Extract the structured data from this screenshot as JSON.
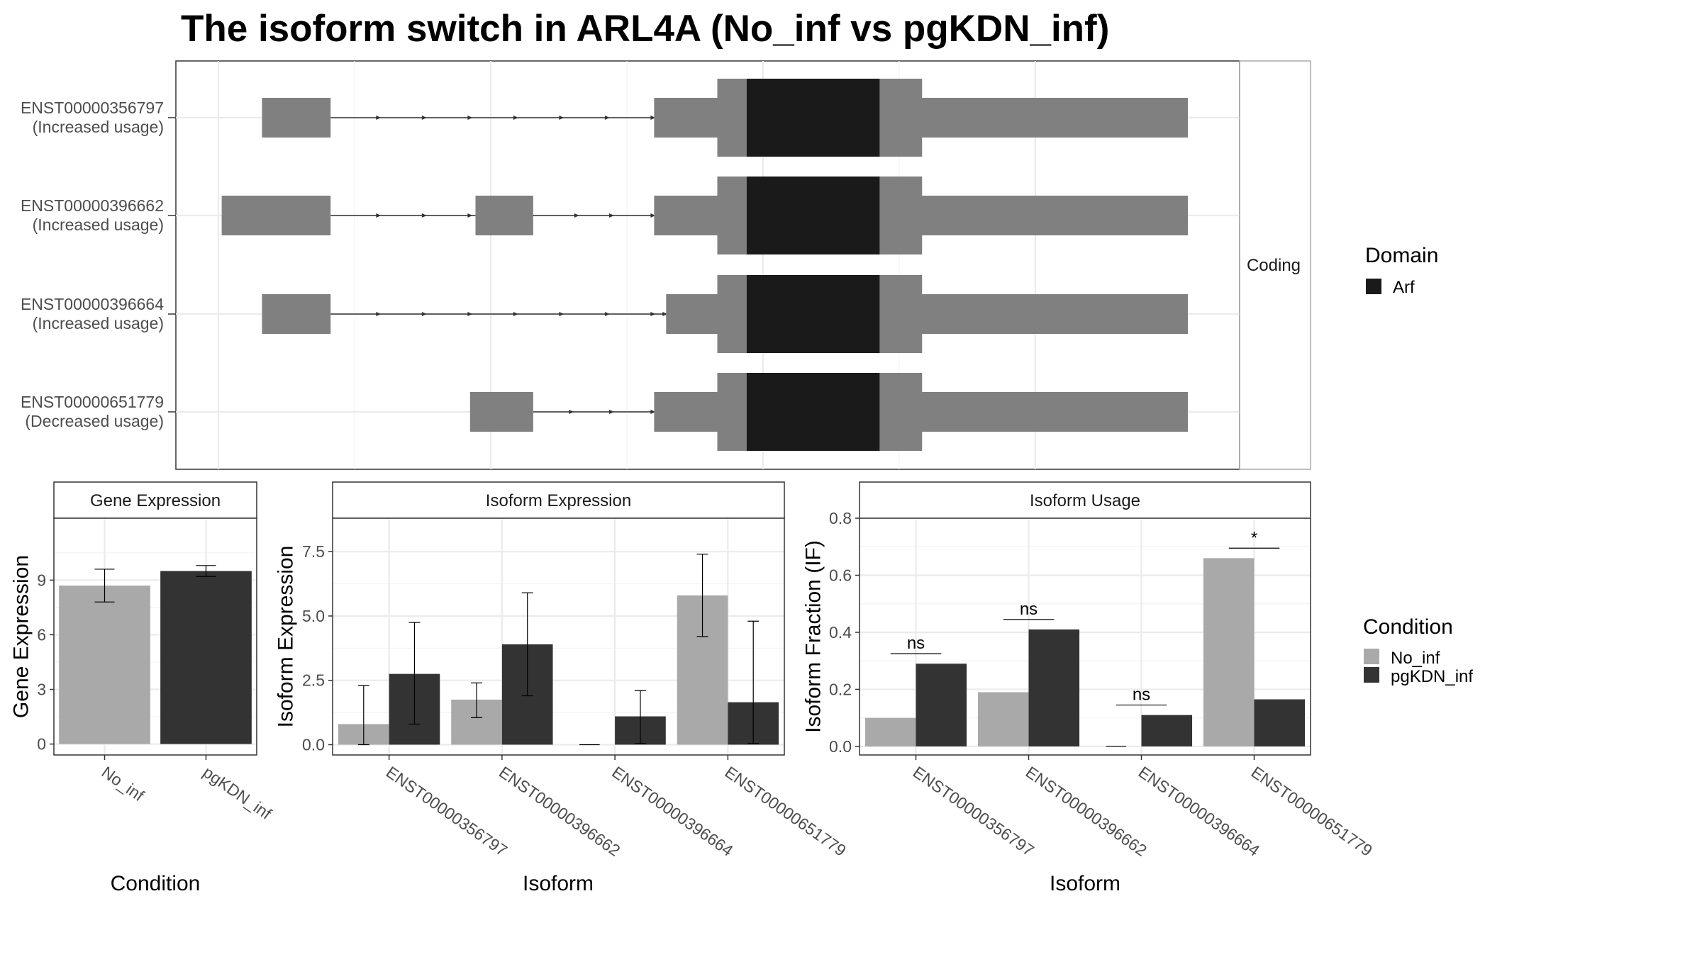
{
  "title": "The isoform switch in ARL4A (No_inf vs pgKDN_inf)",
  "colors": {
    "no_inf": "#a9a9a9",
    "pgkdn_inf": "#333333",
    "exon": "#808080",
    "domain": "#1a1a1a",
    "grid": "#ebebeb",
    "panel_border": "#333333",
    "strip_border": "#aaaaaa"
  },
  "structure": {
    "facet_label": "Coding",
    "legend_title": "Domain",
    "legend_items": [
      "Arf"
    ],
    "coordinate_note": "relative genomic units (unlabeled axis)",
    "transcripts": [
      {
        "id": "ENST00000356797",
        "status": "(Increased usage)",
        "exons": [
          [
            40,
            103
          ],
          [
            400,
            462
          ],
          [
            462,
            890
          ]
        ],
        "arrows": [
          148,
          190,
          232,
          274,
          316,
          358,
          400
        ]
      },
      {
        "id": "ENST00000396662",
        "status": "(Increased usage)",
        "exons": [
          [
            3,
            103
          ],
          [
            236,
            289
          ],
          [
            400,
            462
          ],
          [
            462,
            890
          ]
        ],
        "arrows": [
          148,
          190,
          232,
          289,
          330,
          362,
          400
        ]
      },
      {
        "id": "ENST00000396664",
        "status": "(Increased usage)",
        "exons": [
          [
            40,
            103
          ],
          [
            411,
            462
          ],
          [
            462,
            890
          ]
        ],
        "arrows": [
          148,
          190,
          232,
          274,
          316,
          358,
          400,
          411
        ]
      },
      {
        "id": "ENST00000651779",
        "status": "(Decreased usage)",
        "exons": [
          [
            231,
            289
          ],
          [
            400,
            462
          ],
          [
            462,
            890
          ]
        ],
        "arrows": [
          325,
          362,
          400
        ]
      }
    ],
    "cds": [
      458,
      646
    ],
    "domain": [
      485,
      607
    ]
  },
  "chart_data": [
    {
      "type": "bar",
      "panel": "Gene Expression",
      "xlabel": "Condition",
      "ylabel": "Gene Expression",
      "categories": [
        "No_inf",
        "pgKDN_inf"
      ],
      "values": [
        8.7,
        9.5
      ],
      "errors": [
        [
          7.8,
          9.6
        ],
        [
          9.2,
          9.8
        ]
      ],
      "ylim": [
        -0.6,
        12.4
      ],
      "yticks": [
        0,
        3,
        6,
        9
      ],
      "grid": true
    },
    {
      "type": "bar",
      "panel": "Isoform Expression",
      "xlabel": "Isoform",
      "ylabel": "Isoform Expression",
      "categories": [
        "ENST00000356797",
        "ENST00000396662",
        "ENST00000396664",
        "ENST00000651779"
      ],
      "series": [
        {
          "name": "No_inf",
          "values": [
            0.8,
            1.75,
            0.0,
            5.8
          ],
          "errors": [
            [
              0.0,
              2.3
            ],
            [
              1.05,
              2.4
            ],
            [
              0.0,
              0.0
            ],
            [
              4.2,
              7.4
            ]
          ]
        },
        {
          "name": "pgKDN_inf",
          "values": [
            2.75,
            3.9,
            1.1,
            1.65
          ],
          "errors": [
            [
              0.8,
              4.75
            ],
            [
              1.9,
              5.9
            ],
            [
              0.05,
              2.1
            ],
            [
              0.05,
              4.8
            ]
          ]
        }
      ],
      "ylim": [
        -0.4,
        8.8
      ],
      "yticks": [
        "0.0",
        "2.5",
        "5.0",
        "7.5"
      ],
      "grid": true
    },
    {
      "type": "bar",
      "panel": "Isoform Usage",
      "xlabel": "Isoform",
      "ylabel": "Isoform Fraction (IF)",
      "categories": [
        "ENST00000356797",
        "ENST00000396662",
        "ENST00000396664",
        "ENST00000651779"
      ],
      "series": [
        {
          "name": "No_inf",
          "values": [
            0.1,
            0.19,
            0.0,
            0.66
          ]
        },
        {
          "name": "pgKDN_inf",
          "values": [
            0.29,
            0.41,
            0.11,
            0.165
          ]
        }
      ],
      "significance": [
        "ns",
        "ns",
        "ns",
        "*"
      ],
      "significance_level": [
        0.325,
        0.445,
        0.145,
        0.695
      ],
      "ylim": [
        -0.03,
        0.8
      ],
      "yticks": [
        "0.0",
        "0.2",
        "0.4",
        "0.6",
        "0.8"
      ],
      "grid": true
    }
  ],
  "condition_legend": {
    "title": "Condition",
    "items": [
      "No_inf",
      "pgKDN_inf"
    ]
  }
}
